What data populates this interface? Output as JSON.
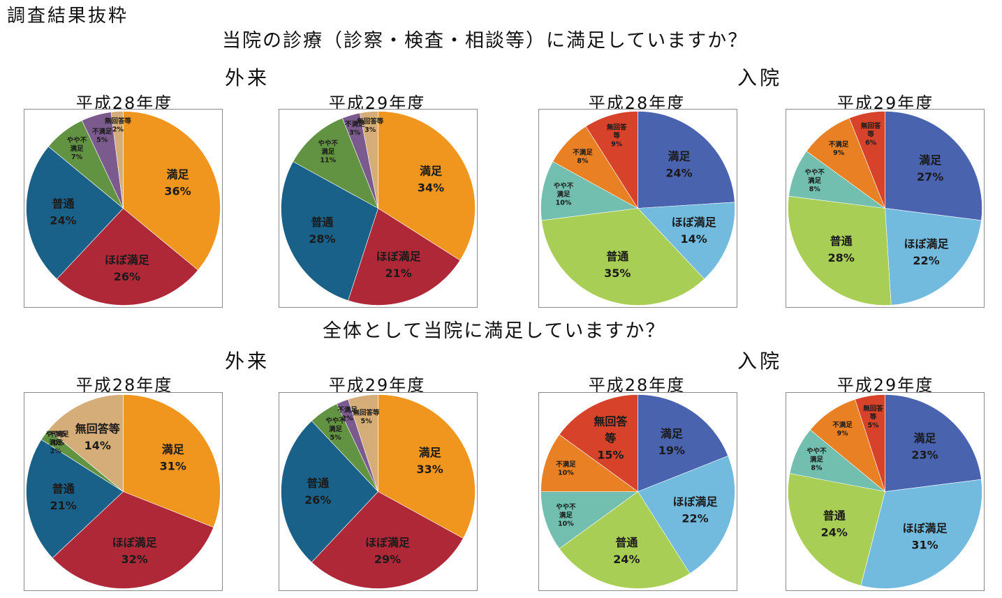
{
  "page_title": "調査結果抜粋",
  "questions": [
    "当院の診療（診察・検査・相談等）に満足していますか？",
    "全体として当院に満足していますか？"
  ],
  "section_labels": {
    "outpatient": "外来",
    "inpatient": "入院"
  },
  "chart_data": [
    {
      "type": "pie",
      "question": 0,
      "group": "外来",
      "title": "平成28年度",
      "slices": [
        {
          "label": "満足",
          "value": 36,
          "display": [
            "満足",
            "36%"
          ],
          "color": "#F0961E"
        },
        {
          "label": "ほぼ満足",
          "value": 26,
          "display": [
            "ほぼ満足",
            "26%"
          ],
          "color": "#AE2838"
        },
        {
          "label": "普通",
          "value": 24,
          "display": [
            "普通",
            "24%"
          ],
          "color": "#1A6189"
        },
        {
          "label": "やや不満足",
          "value": 7,
          "display": [
            "やや不",
            "満足",
            "7%"
          ],
          "color": "#629342"
        },
        {
          "label": "不満足",
          "value": 5,
          "display": [
            "不満足",
            "5%"
          ],
          "color": "#7B5A8E"
        },
        {
          "label": "無回答等",
          "value": 2,
          "display": [
            "無回答等",
            "2%"
          ],
          "color": "#D5AD78"
        }
      ]
    },
    {
      "type": "pie",
      "question": 0,
      "group": "外来",
      "title": "平成29年度",
      "slices": [
        {
          "label": "満足",
          "value": 34,
          "display": [
            "満足",
            "34%"
          ],
          "color": "#F0961E"
        },
        {
          "label": "ほぼ満足",
          "value": 21,
          "display": [
            "ほぼ満足",
            "21%"
          ],
          "color": "#AE2838"
        },
        {
          "label": "普通",
          "value": 28,
          "display": [
            "普通",
            "28%"
          ],
          "color": "#1A6189"
        },
        {
          "label": "やや不満足",
          "value": 11,
          "display": [
            "やや不",
            "満足",
            "11%"
          ],
          "color": "#629342"
        },
        {
          "label": "不満足",
          "value": 3,
          "display": [
            "不満足",
            "3%"
          ],
          "color": "#7B5A8E"
        },
        {
          "label": "無回答等",
          "value": 3,
          "display": [
            "無回答等",
            "3%"
          ],
          "color": "#D5AD78"
        }
      ]
    },
    {
      "type": "pie",
      "question": 0,
      "group": "入院",
      "title": "平成28年度",
      "slices": [
        {
          "label": "満足",
          "value": 24,
          "display": [
            "満足",
            "24%"
          ],
          "color": "#4A63AF"
        },
        {
          "label": "ほぼ満足",
          "value": 14,
          "display": [
            "ほぼ満足",
            "14%"
          ],
          "color": "#72BBDE"
        },
        {
          "label": "普通",
          "value": 35,
          "display": [
            "普通",
            "35%"
          ],
          "color": "#A9CE55"
        },
        {
          "label": "やや不満足",
          "value": 10,
          "display": [
            "やや不",
            "満足",
            "10%"
          ],
          "color": "#72BEAF"
        },
        {
          "label": "不満足",
          "value": 8,
          "display": [
            "不満足",
            "8%"
          ],
          "color": "#E98124"
        },
        {
          "label": "無回答等",
          "value": 9,
          "display": [
            "無回答",
            "等",
            "9%"
          ],
          "color": "#D6432A"
        }
      ]
    },
    {
      "type": "pie",
      "question": 0,
      "group": "入院",
      "title": "平成29年度",
      "slices": [
        {
          "label": "満足",
          "value": 27,
          "display": [
            "満足",
            "27%"
          ],
          "color": "#4A63AF"
        },
        {
          "label": "ほぼ満足",
          "value": 22,
          "display": [
            "ほぼ満足",
            "22%"
          ],
          "color": "#72BBDE"
        },
        {
          "label": "普通",
          "value": 28,
          "display": [
            "普通",
            "28%"
          ],
          "color": "#A9CE55"
        },
        {
          "label": "やや不満足",
          "value": 8,
          "display": [
            "やや不",
            "満足",
            "8%"
          ],
          "color": "#72BEAF"
        },
        {
          "label": "不満足",
          "value": 9,
          "display": [
            "不満足",
            "9%"
          ],
          "color": "#E98124"
        },
        {
          "label": "無回答等",
          "value": 6,
          "display": [
            "無回答",
            "等",
            "6%"
          ],
          "color": "#D6432A"
        }
      ]
    },
    {
      "type": "pie",
      "question": 1,
      "group": "外来",
      "title": "平成28年度",
      "slices": [
        {
          "label": "満足",
          "value": 31,
          "display": [
            "満足",
            "31%"
          ],
          "color": "#F0961E"
        },
        {
          "label": "ほぼ満足",
          "value": 32,
          "display": [
            "ほぼ満足",
            "32%"
          ],
          "color": "#AE2838"
        },
        {
          "label": "普通",
          "value": 21,
          "display": [
            "普通",
            "21%"
          ],
          "color": "#1A6189"
        },
        {
          "label": "やや不満足",
          "value": 2,
          "display": [
            "やや不",
            "満足",
            "2%"
          ],
          "color": "#629342"
        },
        {
          "label": "不満足",
          "value": 0,
          "display": [
            "不満足",
            "0%"
          ],
          "color": "#7B5A8E"
        },
        {
          "label": "無回答等",
          "value": 14,
          "display": [
            "無回答等",
            "14%"
          ],
          "color": "#D5AD78"
        }
      ]
    },
    {
      "type": "pie",
      "question": 1,
      "group": "外来",
      "title": "平成29年度",
      "slices": [
        {
          "label": "満足",
          "value": 33,
          "display": [
            "満足",
            "33%"
          ],
          "color": "#F0961E"
        },
        {
          "label": "ほぼ満足",
          "value": 29,
          "display": [
            "ほぼ満足",
            "29%"
          ],
          "color": "#AE2838"
        },
        {
          "label": "普通",
          "value": 26,
          "display": [
            "普通",
            "26%"
          ],
          "color": "#1A6189"
        },
        {
          "label": "やや不満足",
          "value": 5,
          "display": [
            "やや不",
            "満足",
            "5%"
          ],
          "color": "#629342"
        },
        {
          "label": "不満足",
          "value": 2,
          "display": [
            "不満足",
            "2%"
          ],
          "color": "#7B5A8E"
        },
        {
          "label": "無回答等",
          "value": 5,
          "display": [
            "無回答等",
            "5%"
          ],
          "color": "#D5AD78"
        }
      ]
    },
    {
      "type": "pie",
      "question": 1,
      "group": "入院",
      "title": "平成28年度",
      "slices": [
        {
          "label": "満足",
          "value": 19,
          "display": [
            "満足",
            "19%"
          ],
          "color": "#4A63AF"
        },
        {
          "label": "ほぼ満足",
          "value": 22,
          "display": [
            "ほぼ満足",
            "22%"
          ],
          "color": "#72BBDE"
        },
        {
          "label": "普通",
          "value": 24,
          "display": [
            "普通",
            "24%"
          ],
          "color": "#A9CE55"
        },
        {
          "label": "やや不満足",
          "value": 10,
          "display": [
            "やや不",
            "満足",
            "10%"
          ],
          "color": "#72BEAF"
        },
        {
          "label": "不満足",
          "value": 10,
          "display": [
            "不満足",
            "10%"
          ],
          "color": "#E98124"
        },
        {
          "label": "無回答等",
          "value": 15,
          "display": [
            "無回答",
            "等",
            "15%"
          ],
          "color": "#D6432A"
        }
      ]
    },
    {
      "type": "pie",
      "question": 1,
      "group": "入院",
      "title": "平成29年度",
      "slices": [
        {
          "label": "満足",
          "value": 23,
          "display": [
            "満足",
            "23%"
          ],
          "color": "#4A63AF"
        },
        {
          "label": "ほぼ満足",
          "value": 31,
          "display": [
            "ほぼ満足",
            "31%"
          ],
          "color": "#72BBDE"
        },
        {
          "label": "普通",
          "value": 24,
          "display": [
            "普通",
            "24%"
          ],
          "color": "#A9CE55"
        },
        {
          "label": "やや不満足",
          "value": 8,
          "display": [
            "やや不",
            "満足",
            "8%"
          ],
          "color": "#72BEAF"
        },
        {
          "label": "不満足",
          "value": 9,
          "display": [
            "不満足",
            "9%"
          ],
          "color": "#E98124"
        },
        {
          "label": "無回答等",
          "value": 5,
          "display": [
            "無回答",
            "等",
            "5%"
          ],
          "color": "#D6432A"
        }
      ]
    }
  ]
}
